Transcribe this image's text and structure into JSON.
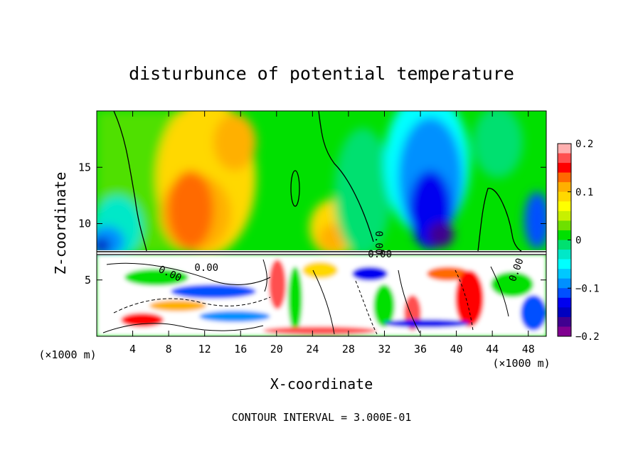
{
  "chart_data": {
    "type": "heatmap",
    "title": "disturbunce of potential temperature",
    "xlabel": "X-coordinate",
    "ylabel": "Z-coordinate",
    "x_unit": "(×1000 m)",
    "y_unit": "(×1000 m)",
    "xlim": [
      0,
      50
    ],
    "ylim": [
      0,
      20
    ],
    "x_ticks": [
      4,
      8,
      12,
      16,
      20,
      24,
      28,
      32,
      36,
      40,
      44,
      48
    ],
    "y_ticks": [
      5,
      10,
      15
    ],
    "colorbar": {
      "range": [
        -0.2,
        0.2
      ],
      "tick_values": [
        0.2,
        0.1,
        0,
        -0.1,
        -0.2
      ],
      "tick_labels": [
        "0.2",
        "0.1",
        "0",
        "−0.1",
        "−0.2"
      ],
      "colors": [
        "#ffb0b0",
        "#ff5050",
        "#ff0000",
        "#ff6a00",
        "#ffb000",
        "#ffd800",
        "#ffff00",
        "#c8f000",
        "#6ee000",
        "#00e000",
        "#00e070",
        "#00e8c8",
        "#00ffff",
        "#00c8ff",
        "#0090ff",
        "#0050ff",
        "#0000f0",
        "#0000c0",
        "#400090",
        "#800090"
      ]
    },
    "contour_labels": [
      {
        "text": "0.00",
        "x": 8.0,
        "z": 5.3,
        "angle": 25
      },
      {
        "text": "0.00",
        "x": 12.2,
        "z": 5.8,
        "angle": 0
      },
      {
        "text": "0.00",
        "x": 31.0,
        "z": 8.3,
        "angle": 90
      },
      {
        "text": "0.00",
        "x": 31.5,
        "z": 7.0,
        "angle": 0
      },
      {
        "text": "0.00",
        "x": 47.0,
        "z": 5.8,
        "angle": -70
      }
    ],
    "footer": "CONTOUR INTERVAL = 3.000E-01"
  }
}
